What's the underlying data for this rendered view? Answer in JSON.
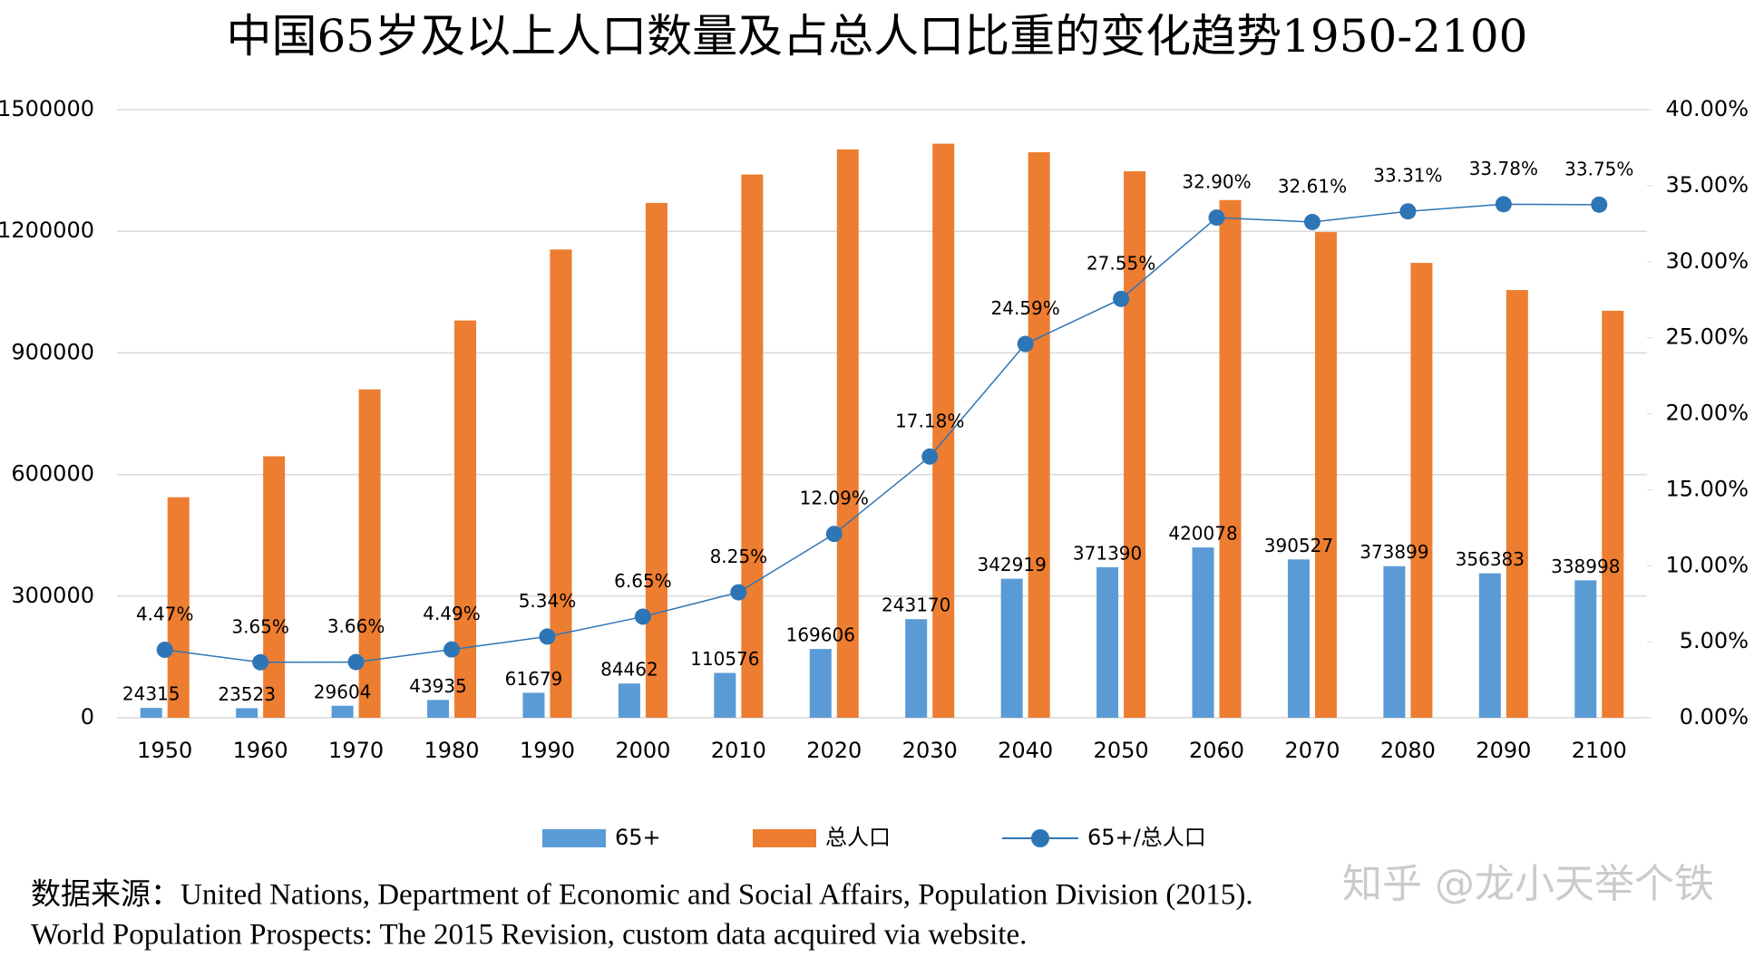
{
  "chart_data": {
    "type": "bar",
    "title": "中国65岁及以上人口数量及占总人口比重的变化趋势1950-2100",
    "categories": [
      "1950",
      "1960",
      "1970",
      "1980",
      "1990",
      "2000",
      "2010",
      "2020",
      "2030",
      "2040",
      "2050",
      "2060",
      "2070",
      "2080",
      "2090",
      "2100"
    ],
    "series": [
      {
        "name": "65+",
        "color": "#5b9bd5",
        "values": [
          24315,
          23523,
          29604,
          43935,
          61679,
          84462,
          110576,
          169606,
          243170,
          342919,
          371390,
          420078,
          390527,
          373899,
          356383,
          338998
        ]
      },
      {
        "name": "总人口",
        "color": "#ed7d31",
        "values": [
          544000,
          645000,
          810000,
          980000,
          1155000,
          1270000,
          1340000,
          1402000,
          1416000,
          1395000,
          1348000,
          1277000,
          1198000,
          1122000,
          1055000,
          1004000
        ]
      },
      {
        "name": "65+/总人口",
        "color": "#2e75b6",
        "type": "line",
        "axis": "y2",
        "values": [
          4.47,
          3.65,
          3.66,
          4.49,
          5.34,
          6.65,
          8.25,
          12.09,
          17.18,
          24.59,
          27.55,
          32.9,
          32.61,
          33.31,
          33.78,
          33.75
        ],
        "value_labels": [
          "4.47%",
          "3.65%",
          "3.66%",
          "4.49%",
          "5.34%",
          "6.65%",
          "8.25%",
          "12.09%",
          "17.18%",
          "24.59%",
          "27.55%",
          "32.90%",
          "32.61%",
          "33.31%",
          "33.78%",
          "33.75%"
        ]
      }
    ],
    "ylim": [
      0,
      1500000
    ],
    "yticks": [
      0,
      300000,
      600000,
      900000,
      1200000,
      1500000
    ],
    "y2lim": [
      0,
      40
    ],
    "y2ticks": [
      {
        "value": 0,
        "label": "0.00%"
      },
      {
        "value": 5,
        "label": "5.00%"
      },
      {
        "value": 10,
        "label": "10.00%"
      },
      {
        "value": 15,
        "label": "15.00%"
      },
      {
        "value": 20,
        "label": "20.00%"
      },
      {
        "value": 25,
        "label": "25.00%"
      },
      {
        "value": 30,
        "label": "30.00%"
      },
      {
        "value": 35,
        "label": "35.00%"
      },
      {
        "value": 40,
        "label": "40.00%"
      }
    ],
    "grid": true,
    "legend": "bottom",
    "source": [
      "数据来源：United Nations, Department of Economic and Social Affairs, Population Division (2015).",
      "World Population Prospects: The 2015 Revision, custom data acquired via website."
    ],
    "watermark": "知乎 @龙小天举个铁"
  }
}
